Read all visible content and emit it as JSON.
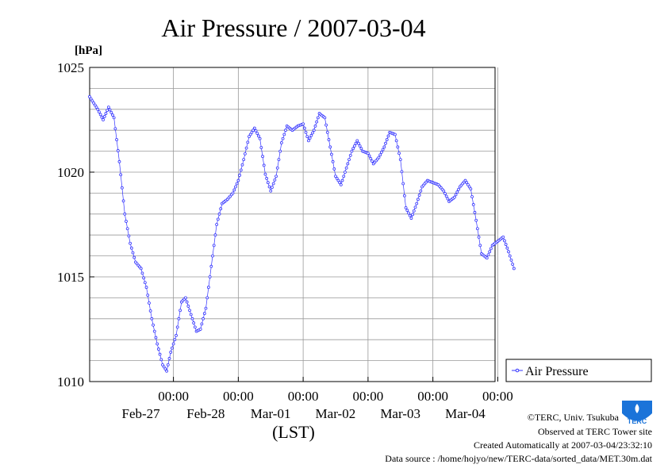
{
  "chart_data": {
    "type": "line",
    "title": "Air Pressure / 2007-03-04",
    "ylabel": "[hPa]",
    "xlabel": "(LST)",
    "ylim": [
      1010,
      1025
    ],
    "yticks": [
      "1010",
      "1015",
      "1020",
      "1025"
    ],
    "x_hours_range": [
      -151,
      -1
    ],
    "x_ticks": [
      {
        "time": "00:00",
        "date": "Feb-27",
        "hour": -120
      },
      {
        "time": "00:00",
        "date": "Feb-28",
        "hour": -96
      },
      {
        "time": "00:00",
        "date": "Mar-01",
        "hour": -72
      },
      {
        "time": "00:00",
        "date": "Mar-02",
        "hour": -48
      },
      {
        "time": "00:00",
        "date": "Mar-03",
        "hour": -24
      },
      {
        "time": "00:00",
        "date": "Mar-04",
        "hour": 0
      }
    ],
    "grid": true,
    "legend_position": "bottom-right",
    "series": [
      {
        "name": "Air Pressure",
        "color": "#3333ff",
        "points": [
          [
            -151,
            1023.6
          ],
          [
            -148,
            1023.0
          ],
          [
            -146,
            1022.5
          ],
          [
            -144,
            1023.1
          ],
          [
            -142,
            1022.6
          ],
          [
            -140,
            1020.5
          ],
          [
            -138,
            1018.0
          ],
          [
            -136,
            1016.6
          ],
          [
            -134,
            1015.7
          ],
          [
            -132,
            1015.4
          ],
          [
            -130,
            1014.5
          ],
          [
            -128,
            1013.0
          ],
          [
            -126,
            1011.8
          ],
          [
            -124,
            1010.8
          ],
          [
            -122.5,
            1010.5
          ],
          [
            -121,
            1011.4
          ],
          [
            -119,
            1012.2
          ],
          [
            -117,
            1013.8
          ],
          [
            -115.5,
            1014.0
          ],
          [
            -113.5,
            1013.2
          ],
          [
            -111.5,
            1012.4
          ],
          [
            -110,
            1012.5
          ],
          [
            -108,
            1013.5
          ],
          [
            -106,
            1015.5
          ],
          [
            -104,
            1017.5
          ],
          [
            -102,
            1018.5
          ],
          [
            -100,
            1018.7
          ],
          [
            -98,
            1019.0
          ],
          [
            -96,
            1019.6
          ],
          [
            -94,
            1020.6
          ],
          [
            -92,
            1021.7
          ],
          [
            -90,
            1022.1
          ],
          [
            -88,
            1021.6
          ],
          [
            -86,
            1019.9
          ],
          [
            -84,
            1019.1
          ],
          [
            -82,
            1019.8
          ],
          [
            -80,
            1021.4
          ],
          [
            -78,
            1022.2
          ],
          [
            -76,
            1022.0
          ],
          [
            -74,
            1022.2
          ],
          [
            -72,
            1022.3
          ],
          [
            -70,
            1021.5
          ],
          [
            -68,
            1022.0
          ],
          [
            -66,
            1022.8
          ],
          [
            -64,
            1022.6
          ],
          [
            -62,
            1021.2
          ],
          [
            -60,
            1019.8
          ],
          [
            -58,
            1019.4
          ],
          [
            -56,
            1020.2
          ],
          [
            -54,
            1021.0
          ],
          [
            -52,
            1021.5
          ],
          [
            -50,
            1021.0
          ],
          [
            -48,
            1020.9
          ],
          [
            -46,
            1020.4
          ],
          [
            -44,
            1020.7
          ],
          [
            -42,
            1021.2
          ],
          [
            -40,
            1021.9
          ],
          [
            -38,
            1021.8
          ],
          [
            -36,
            1020.6
          ],
          [
            -34,
            1018.3
          ],
          [
            -32,
            1017.8
          ],
          [
            -30,
            1018.5
          ],
          [
            -28,
            1019.3
          ],
          [
            -26,
            1019.6
          ],
          [
            -24,
            1019.5
          ],
          [
            -22,
            1019.4
          ],
          [
            -20,
            1019.1
          ],
          [
            -18,
            1018.6
          ],
          [
            -16,
            1018.8
          ],
          [
            -14,
            1019.3
          ],
          [
            -12,
            1019.6
          ],
          [
            -10,
            1019.2
          ],
          [
            -8,
            1017.7
          ],
          [
            -6,
            1016.1
          ],
          [
            -4,
            1015.9
          ],
          [
            -2,
            1016.5
          ],
          [
            0,
            1016.7
          ],
          [
            2,
            1016.9
          ],
          [
            4,
            1016.2
          ],
          [
            6,
            1015.4
          ]
        ]
      }
    ]
  },
  "footer": {
    "copyright": "©TERC, Univ. Tsukuba",
    "observed": "Observed at TERC Tower site",
    "created": "Created Automatically at 2007-03-04/23:32:10",
    "source": "Data source : /home/hojyo/new/TERC-data/sorted_data/MET.30m.dat",
    "logo_text": "TERC",
    "logo_color": "#1a73d9"
  }
}
